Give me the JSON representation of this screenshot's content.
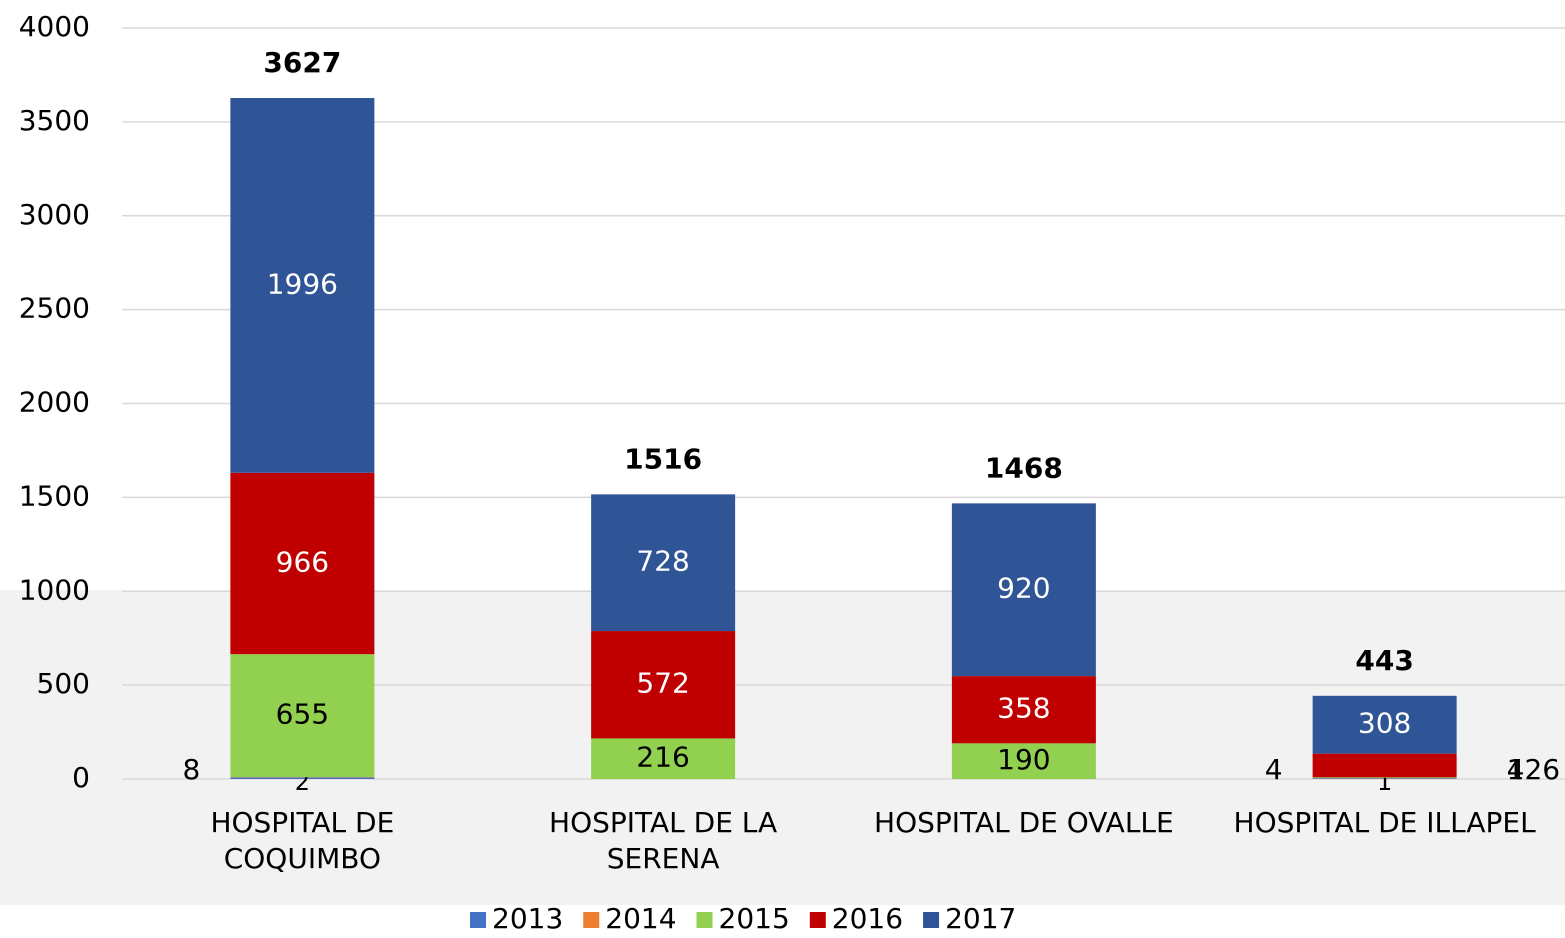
{
  "chart_data": {
    "type": "stacked_bar",
    "categories": [
      "HOSPITAL DE COQUIMBO",
      "HOSPITAL DE LA SERENA",
      "HOSPITAL DE OVALLE",
      "HOSPITAL DE ILLAPEL"
    ],
    "series": [
      {
        "name": "2013",
        "color": "#4472c4",
        "values": [
          8,
          null,
          null,
          4
        ]
      },
      {
        "name": "2014",
        "color": "#ed7d31",
        "values": [
          2,
          null,
          null,
          1
        ]
      },
      {
        "name": "2015",
        "color": "#92d050",
        "values": [
          655,
          216,
          190,
          4
        ]
      },
      {
        "name": "2016",
        "color": "#c00000",
        "values": [
          966,
          572,
          358,
          126
        ]
      },
      {
        "name": "2017",
        "color": "#2f5597",
        "values": [
          1996,
          728,
          920,
          308
        ]
      }
    ],
    "totals": [
      3627,
      1516,
      1468,
      443
    ],
    "ylim": [
      0,
      4000
    ],
    "yticks": [
      0,
      500,
      1000,
      1500,
      2000,
      2500,
      3000,
      3500,
      4000
    ],
    "grid": true,
    "legend": "bottom"
  }
}
